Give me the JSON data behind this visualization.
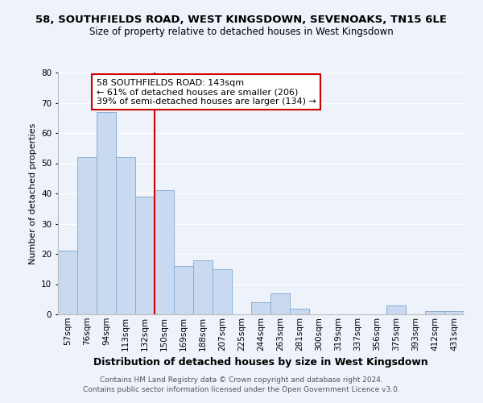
{
  "title": "58, SOUTHFIELDS ROAD, WEST KINGSDOWN, SEVENOAKS, TN15 6LE",
  "subtitle": "Size of property relative to detached houses in West Kingsdown",
  "xlabel": "Distribution of detached houses by size in West Kingsdown",
  "ylabel": "Number of detached properties",
  "bar_labels": [
    "57sqm",
    "76sqm",
    "94sqm",
    "113sqm",
    "132sqm",
    "150sqm",
    "169sqm",
    "188sqm",
    "207sqm",
    "225sqm",
    "244sqm",
    "263sqm",
    "281sqm",
    "300sqm",
    "319sqm",
    "337sqm",
    "356sqm",
    "375sqm",
    "393sqm",
    "412sqm",
    "431sqm"
  ],
  "bar_values": [
    21,
    52,
    67,
    52,
    39,
    41,
    16,
    18,
    15,
    0,
    4,
    7,
    2,
    0,
    0,
    0,
    0,
    3,
    0,
    1,
    1
  ],
  "bar_color": "#c9d9f0",
  "bar_edge_color": "#8aaed4",
  "vline_color": "#cc0000",
  "vline_pos": 4.5,
  "annotation_title": "58 SOUTHFIELDS ROAD: 143sqm",
  "annotation_line1": "← 61% of detached houses are smaller (206)",
  "annotation_line2": "39% of semi-detached houses are larger (134) →",
  "annotation_box_color": "#ffffff",
  "annotation_box_edge": "#cc0000",
  "ylim": [
    0,
    80
  ],
  "yticks": [
    0,
    10,
    20,
    30,
    40,
    50,
    60,
    70,
    80
  ],
  "footer_line1": "Contains HM Land Registry data © Crown copyright and database right 2024.",
  "footer_line2": "Contains public sector information licensed under the Open Government Licence v3.0.",
  "background_color": "#eef2fa",
  "grid_color": "#ffffff",
  "title_fontsize": 9.5,
  "subtitle_fontsize": 8.5,
  "xlabel_fontsize": 9,
  "ylabel_fontsize": 8,
  "tick_fontsize": 7.5,
  "footer_fontsize": 6.5,
  "ann_fontsize": 8
}
